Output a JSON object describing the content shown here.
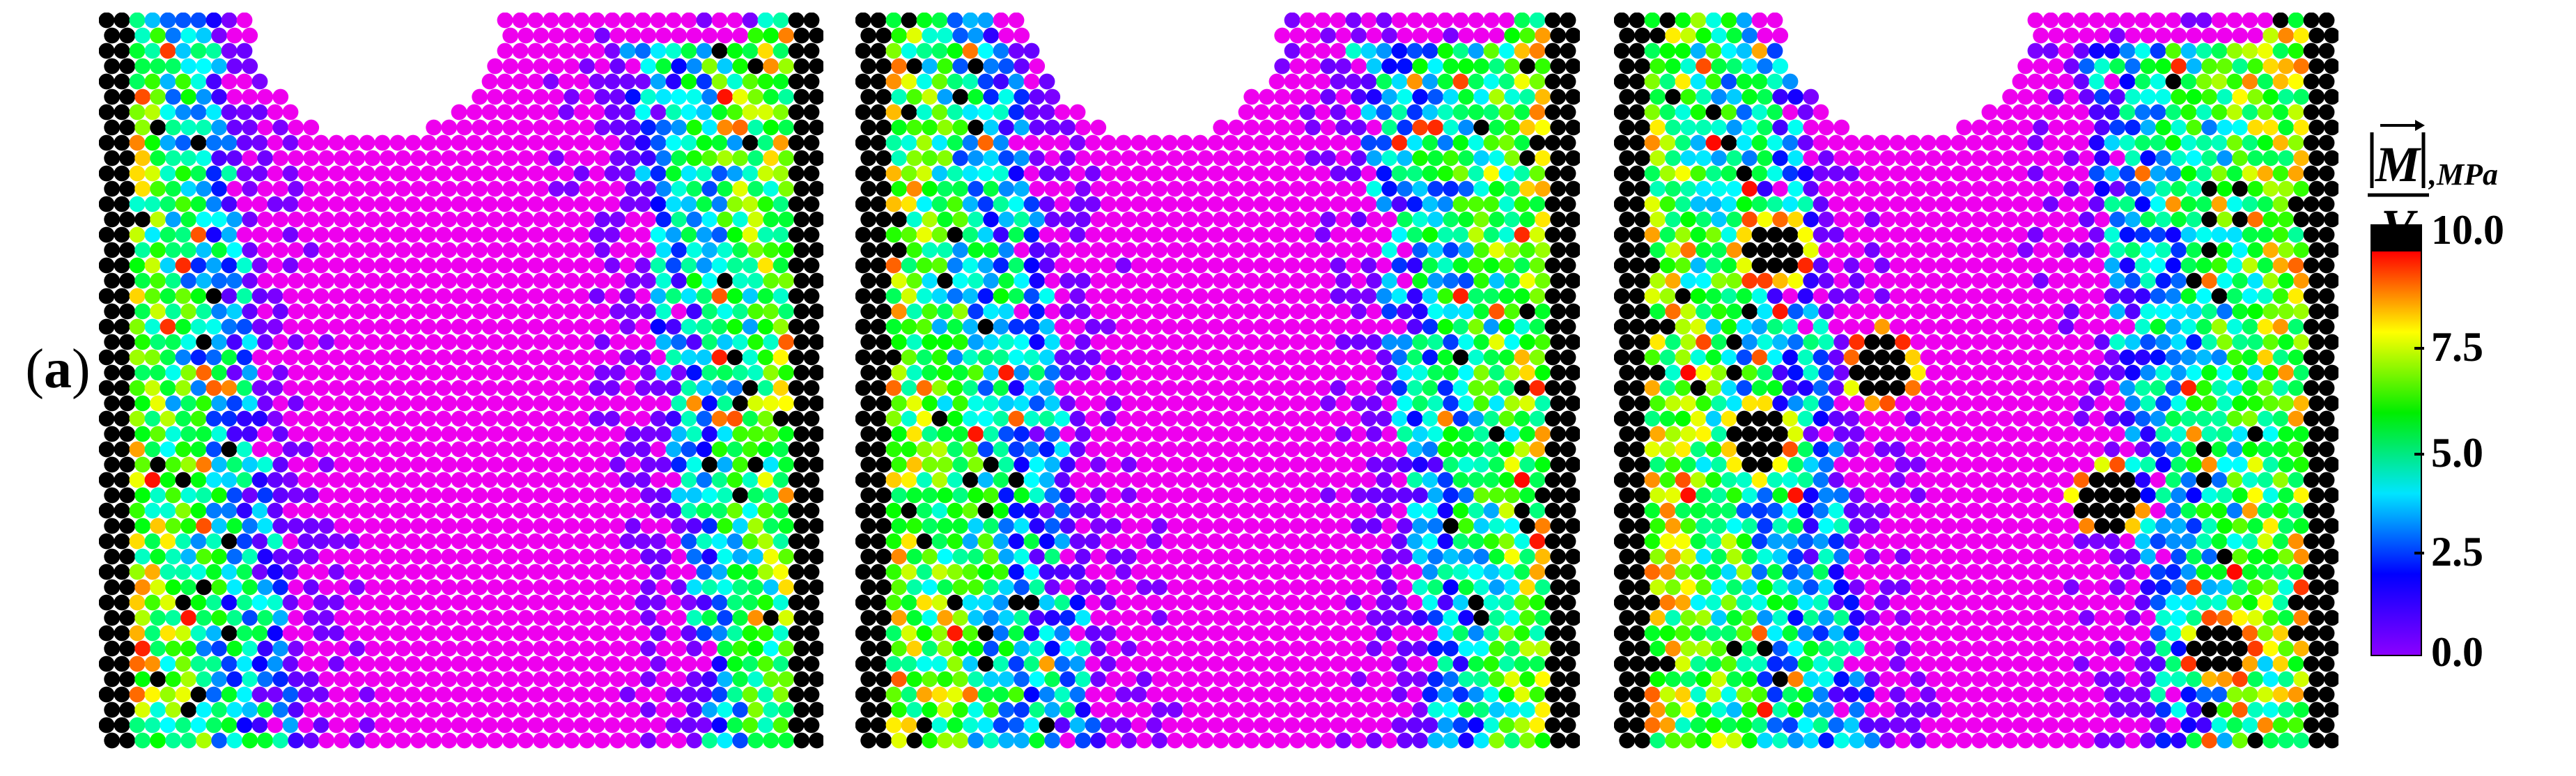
{
  "panel_label": "(a)",
  "panel_label_parts": {
    "open": "(",
    "letter": "a",
    "close": ")"
  },
  "panels": [
    {
      "name": "simulation-frame-1",
      "seed": 11,
      "notch_center": 0.385,
      "band_left": 0.22,
      "band_right": 0.78,
      "spots": []
    },
    {
      "name": "simulation-frame-2",
      "seed": 37,
      "notch_center": 0.415,
      "band_left": 0.28,
      "band_right": 0.74,
      "spots": []
    },
    {
      "name": "simulation-frame-3",
      "seed": 73,
      "notch_center": 0.405,
      "band_left": 0.3,
      "band_right": 0.7,
      "spots": [
        [
          0.37,
          0.48
        ],
        [
          0.22,
          0.32
        ],
        [
          0.2,
          0.58
        ],
        [
          0.68,
          0.66
        ],
        [
          0.84,
          0.86
        ]
      ]
    }
  ],
  "colorbar": {
    "quantity_symbol_numerator": "M",
    "quantity_symbol_denominator": "V",
    "unit": ",MPa",
    "min": 0.0,
    "max": 10.0,
    "ticks": [
      "10.0",
      "7.5",
      "5.0",
      "2.5",
      "0.0"
    ],
    "overflow_color": "#000000",
    "gradient_stops": [
      "#8B00FF",
      "#0000FF",
      "#00E5FF",
      "#00EE00",
      "#FFFF00",
      "#FF0000"
    ]
  }
}
